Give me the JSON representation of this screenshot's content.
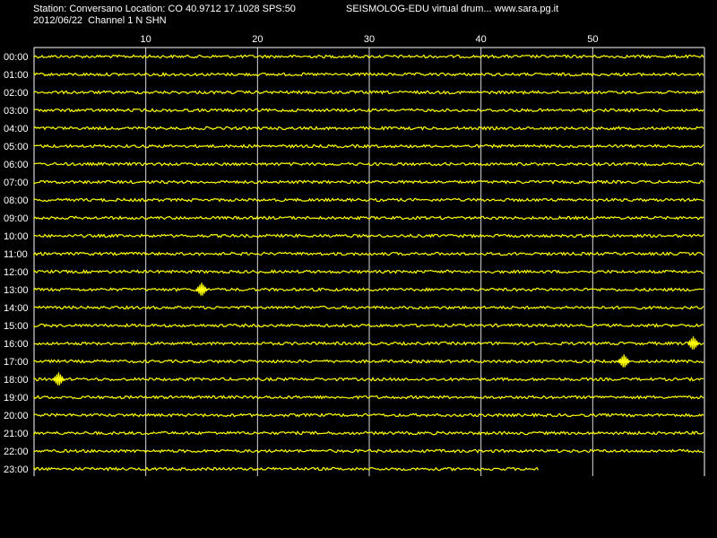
{
  "header": {
    "station_line": "Station: Conversano Location: CO 40.9712 17.1028 SPS:50",
    "title": "SEISMOLOG-EDU virtual drum... www.sara.pg.it",
    "date_line": "2012/06/22  Channel 1 N SHN"
  },
  "colors": {
    "background": "#000000",
    "trace": "#ffff00",
    "grid": "#ffffff",
    "text": "#ffffff"
  },
  "chart_data": {
    "type": "line",
    "title": "SEISMOLOG-EDU virtual drum... www.sara.pg.it",
    "xlabel": "",
    "ylabel": "",
    "x_unit_note": "",
    "xlim": [
      0,
      60
    ],
    "x_ticks": [
      "10",
      "20",
      "30",
      "40",
      "50"
    ],
    "x_tick_values": [
      10,
      20,
      30,
      40,
      50
    ],
    "grid": true,
    "rows": [
      {
        "label": "00:00",
        "end_minute": 60
      },
      {
        "label": "01:00",
        "end_minute": 60
      },
      {
        "label": "02:00",
        "end_minute": 60
      },
      {
        "label": "03:00",
        "end_minute": 60
      },
      {
        "label": "04:00",
        "end_minute": 60
      },
      {
        "label": "05:00",
        "end_minute": 60
      },
      {
        "label": "06:00",
        "end_minute": 60
      },
      {
        "label": "07:00",
        "end_minute": 60
      },
      {
        "label": "08:00",
        "end_minute": 60
      },
      {
        "label": "09:00",
        "end_minute": 60
      },
      {
        "label": "10:00",
        "end_minute": 60
      },
      {
        "label": "11:00",
        "end_minute": 60
      },
      {
        "label": "12:00",
        "end_minute": 60
      },
      {
        "label": "13:00",
        "end_minute": 60
      },
      {
        "label": "14:00",
        "end_minute": 60
      },
      {
        "label": "15:00",
        "end_minute": 60
      },
      {
        "label": "16:00",
        "end_minute": 60
      },
      {
        "label": "17:00",
        "end_minute": 60
      },
      {
        "label": "18:00",
        "end_minute": 60
      },
      {
        "label": "19:00",
        "end_minute": 60
      },
      {
        "label": "20:00",
        "end_minute": 60
      },
      {
        "label": "21:00",
        "end_minute": 60
      },
      {
        "label": "22:00",
        "end_minute": 60
      },
      {
        "label": "23:00",
        "end_minute": 45.2
      }
    ],
    "events": [
      {
        "row": "13:00",
        "minute": 15.0
      },
      {
        "row": "16:00",
        "minute": 59.0
      },
      {
        "row": "17:00",
        "minute": 52.8
      },
      {
        "row": "18:00",
        "minute": 2.2
      }
    ]
  }
}
